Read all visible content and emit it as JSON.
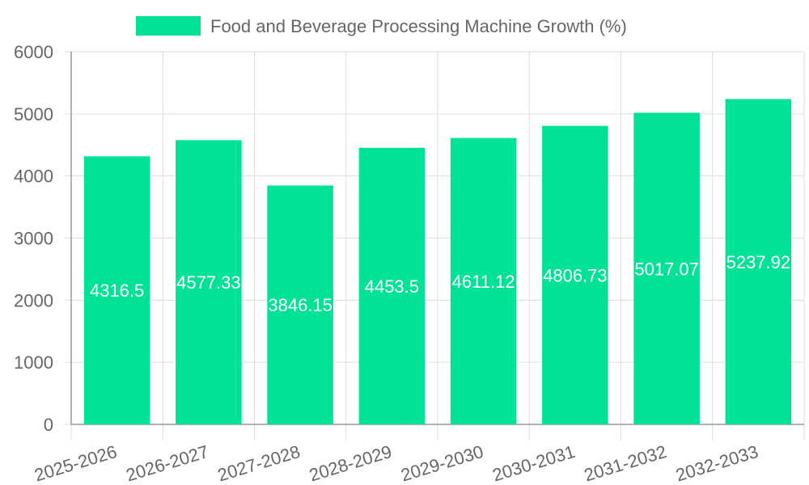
{
  "chart_data": {
    "type": "bar",
    "title": "",
    "xlabel": "",
    "ylabel": "",
    "categories": [
      "2025-2026",
      "2026-2027",
      "2027-2028",
      "2028-2029",
      "2029-2030",
      "2030-2031",
      "2031-2032",
      "2032-2033"
    ],
    "series": [
      {
        "name": "Food and Beverage Processing Machine Growth (%)",
        "values": [
          4316.5,
          4577.33,
          3846.15,
          4453.5,
          4611.12,
          4806.73,
          5017.07,
          5237.92
        ],
        "labels": [
          "4316.5",
          "4577.33",
          "3846.15",
          "4453.5",
          "4611.12",
          "4806.73",
          "5017.07",
          "5237.92"
        ]
      }
    ],
    "ylim": [
      0,
      6000
    ],
    "yticks": [
      0,
      1000,
      2000,
      3000,
      4000,
      5000,
      6000
    ],
    "grid": true,
    "legend_position": "top",
    "colors": {
      "bar": "#00e396",
      "grid": "#dddddd",
      "axis": "#999999",
      "text": "#666666",
      "label": "#ffffff"
    }
  }
}
